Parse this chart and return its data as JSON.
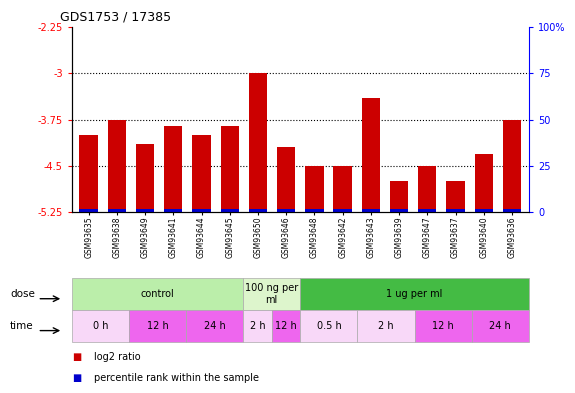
{
  "title": "GDS1753 / 17385",
  "samples": [
    "GSM93635",
    "GSM93638",
    "GSM93649",
    "GSM93641",
    "GSM93644",
    "GSM93645",
    "GSM93650",
    "GSM93646",
    "GSM93648",
    "GSM93642",
    "GSM93643",
    "GSM93639",
    "GSM93647",
    "GSM93637",
    "GSM93640",
    "GSM93636"
  ],
  "log2_values": [
    -4.0,
    -3.75,
    -4.15,
    -3.85,
    -4.0,
    -3.85,
    -3.0,
    -4.2,
    -4.5,
    -4.5,
    -3.4,
    -4.75,
    -4.5,
    -4.75,
    -4.3,
    -3.75
  ],
  "percentile_values": [
    2,
    2,
    2,
    2,
    2,
    2,
    2,
    2,
    2,
    2,
    2,
    2,
    2,
    2,
    2,
    2
  ],
  "ylim": [
    -5.25,
    -2.25
  ],
  "yticks": [
    -5.25,
    -4.5,
    -3.75,
    -3.0,
    -2.25
  ],
  "ytick_labels": [
    "-5.25",
    "-4.5",
    "-3.75",
    "-3",
    "-2.25"
  ],
  "right_yticks": [
    0,
    25,
    50,
    75,
    100
  ],
  "right_ytick_labels": [
    "0",
    "25",
    "50",
    "75",
    "100%"
  ],
  "dotted_lines": [
    -3.0,
    -3.75,
    -4.5
  ],
  "bar_color": "#cc0000",
  "blue_color": "#0000cc",
  "dose_groups": [
    {
      "label": "control",
      "start": 0,
      "end": 6,
      "color": "#bbeeaa"
    },
    {
      "label": "100 ng per\nml",
      "start": 6,
      "end": 8,
      "color": "#ddf5cc"
    },
    {
      "label": "1 ug per ml",
      "start": 8,
      "end": 16,
      "color": "#44bb44"
    }
  ],
  "time_groups": [
    {
      "label": "0 h",
      "start": 0,
      "end": 2,
      "color": "#f8d8f8"
    },
    {
      "label": "12 h",
      "start": 2,
      "end": 4,
      "color": "#ee66ee"
    },
    {
      "label": "24 h",
      "start": 4,
      "end": 6,
      "color": "#ee66ee"
    },
    {
      "label": "2 h",
      "start": 6,
      "end": 7,
      "color": "#f8d8f8"
    },
    {
      "label": "12 h",
      "start": 7,
      "end": 8,
      "color": "#ee66ee"
    },
    {
      "label": "0.5 h",
      "start": 8,
      "end": 10,
      "color": "#f8d8f8"
    },
    {
      "label": "2 h",
      "start": 10,
      "end": 12,
      "color": "#f8d8f8"
    },
    {
      "label": "12 h",
      "start": 12,
      "end": 14,
      "color": "#ee66ee"
    },
    {
      "label": "24 h",
      "start": 14,
      "end": 16,
      "color": "#ee66ee"
    }
  ],
  "legend_items": [
    {
      "label": "log2 ratio",
      "color": "#cc0000"
    },
    {
      "label": "percentile rank within the sample",
      "color": "#0000cc"
    }
  ],
  "fig_width": 5.61,
  "fig_height": 3.75
}
